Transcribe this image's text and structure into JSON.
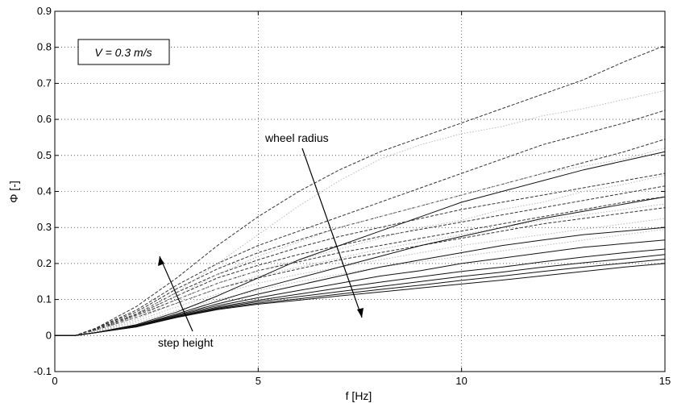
{
  "chart_data": {
    "type": "line",
    "title": "",
    "xlabel": "f [Hz]",
    "ylabel": "Φ [-]",
    "xlim": [
      0,
      15
    ],
    "ylim": [
      -0.1,
      0.9
    ],
    "xticks": [
      "0",
      "5",
      "10",
      "15"
    ],
    "yticks": [
      "-0.1",
      "0",
      "0.1",
      "0.2",
      "0.3",
      "0.4",
      "0.5",
      "0.6",
      "0.7",
      "0.8",
      "0.9"
    ],
    "grid": true,
    "legend": "none",
    "x": [
      0,
      0.5,
      1,
      2,
      3,
      4,
      5,
      6,
      7,
      8,
      9,
      10,
      11,
      12,
      13,
      14,
      15
    ],
    "annotations": {
      "velocity_box": "V = 0.3 m/s",
      "wheel_radius": "wheel radius",
      "step_height": "step height"
    },
    "series_groups": [
      {
        "style": "dashed",
        "color": "#333333",
        "series": [
          {
            "values": [
              0,
              0,
              0.02,
              0.08,
              0.16,
              0.25,
              0.33,
              0.4,
              0.46,
              0.51,
              0.55,
              0.59,
              0.63,
              0.67,
              0.71,
              0.76,
              0.805
            ]
          },
          {
            "values": [
              0,
              0,
              0.02,
              0.07,
              0.14,
              0.2,
              0.25,
              0.29,
              0.33,
              0.37,
              0.41,
              0.45,
              0.49,
              0.53,
              0.56,
              0.59,
              0.625
            ]
          },
          {
            "values": [
              0,
              0,
              0.02,
              0.065,
              0.13,
              0.185,
              0.23,
              0.265,
              0.3,
              0.33,
              0.36,
              0.39,
              0.42,
              0.45,
              0.48,
              0.51,
              0.545
            ]
          },
          {
            "values": [
              0,
              0,
              0.018,
              0.06,
              0.12,
              0.17,
              0.21,
              0.245,
              0.275,
              0.3,
              0.325,
              0.35,
              0.37,
              0.39,
              0.41,
              0.43,
              0.45
            ]
          },
          {
            "values": [
              0,
              0,
              0.017,
              0.058,
              0.11,
              0.16,
              0.195,
              0.225,
              0.25,
              0.275,
              0.295,
              0.315,
              0.335,
              0.355,
              0.375,
              0.395,
              0.415
            ]
          },
          {
            "values": [
              0,
              0,
              0.016,
              0.055,
              0.1,
              0.145,
              0.18,
              0.205,
              0.23,
              0.25,
              0.27,
              0.29,
              0.31,
              0.33,
              0.35,
              0.37,
              0.385
            ]
          },
          {
            "values": [
              0,
              0,
              0.015,
              0.05,
              0.09,
              0.13,
              0.16,
              0.185,
              0.21,
              0.23,
              0.25,
              0.27,
              0.29,
              0.31,
              0.325,
              0.34,
              0.355
            ]
          }
        ]
      },
      {
        "style": "dotted",
        "color": "#b8b8b8",
        "series": [
          {
            "values": [
              0,
              0,
              0.015,
              0.06,
              0.12,
              0.2,
              0.28,
              0.36,
              0.43,
              0.49,
              0.53,
              0.56,
              0.58,
              0.61,
              0.63,
              0.655,
              0.68
            ]
          },
          {
            "values": [
              0,
              0,
              0.014,
              0.055,
              0.11,
              0.17,
              0.22,
              0.26,
              0.3,
              0.33,
              0.36,
              0.39,
              0.42,
              0.45,
              0.47,
              0.49,
              0.52
            ]
          },
          {
            "values": [
              0,
              0,
              0.013,
              0.05,
              0.1,
              0.145,
              0.18,
              0.21,
              0.24,
              0.27,
              0.3,
              0.32,
              0.35,
              0.37,
              0.4,
              0.42,
              0.445
            ]
          },
          {
            "values": [
              0,
              0,
              0.012,
              0.045,
              0.09,
              0.13,
              0.165,
              0.19,
              0.215,
              0.24,
              0.26,
              0.28,
              0.3,
              0.32,
              0.335,
              0.35,
              0.365
            ]
          },
          {
            "values": [
              0,
              0,
              0.011,
              0.04,
              0.08,
              0.115,
              0.145,
              0.17,
              0.19,
              0.21,
              0.23,
              0.25,
              0.265,
              0.28,
              0.295,
              0.31,
              0.325
            ]
          },
          {
            "values": [
              0,
              0,
              0.01,
              0.035,
              0.07,
              0.1,
              0.125,
              0.15,
              0.17,
              0.19,
              0.205,
              0.22,
              0.235,
              0.25,
              0.265,
              0.28,
              0.295
            ]
          }
        ]
      },
      {
        "style": "solid",
        "color": "#111111",
        "series": [
          {
            "values": [
              0,
              0,
              0.008,
              0.03,
              0.065,
              0.11,
              0.16,
              0.21,
              0.25,
              0.29,
              0.33,
              0.37,
              0.4,
              0.43,
              0.46,
              0.485,
              0.51
            ]
          },
          {
            "values": [
              0,
              0,
              0.008,
              0.028,
              0.06,
              0.095,
              0.13,
              0.16,
              0.19,
              0.22,
              0.25,
              0.275,
              0.3,
              0.325,
              0.345,
              0.365,
              0.385
            ]
          },
          {
            "values": [
              0,
              0,
              0.008,
              0.027,
              0.057,
              0.088,
              0.115,
              0.14,
              0.165,
              0.19,
              0.21,
              0.23,
              0.25,
              0.265,
              0.28,
              0.29,
              0.3
            ]
          },
          {
            "values": [
              0,
              0,
              0.008,
              0.026,
              0.055,
              0.083,
              0.105,
              0.125,
              0.145,
              0.165,
              0.18,
              0.2,
              0.215,
              0.23,
              0.245,
              0.255,
              0.265
            ]
          },
          {
            "values": [
              0,
              0,
              0.008,
              0.025,
              0.053,
              0.079,
              0.098,
              0.115,
              0.132,
              0.148,
              0.163,
              0.178,
              0.19,
              0.205,
              0.218,
              0.23,
              0.24
            ]
          },
          {
            "values": [
              0,
              0,
              0.008,
              0.025,
              0.052,
              0.076,
              0.094,
              0.108,
              0.122,
              0.136,
              0.15,
              0.164,
              0.176,
              0.19,
              0.202,
              0.213,
              0.225
            ]
          },
          {
            "values": [
              0,
              0,
              0.008,
              0.024,
              0.051,
              0.074,
              0.09,
              0.102,
              0.115,
              0.128,
              0.14,
              0.153,
              0.165,
              0.178,
              0.19,
              0.201,
              0.212
            ]
          },
          {
            "values": [
              0,
              0,
              0.008,
              0.024,
              0.05,
              0.072,
              0.087,
              0.098,
              0.11,
              0.121,
              0.132,
              0.143,
              0.154,
              0.166,
              0.178,
              0.19,
              0.2
            ]
          }
        ]
      }
    ]
  }
}
